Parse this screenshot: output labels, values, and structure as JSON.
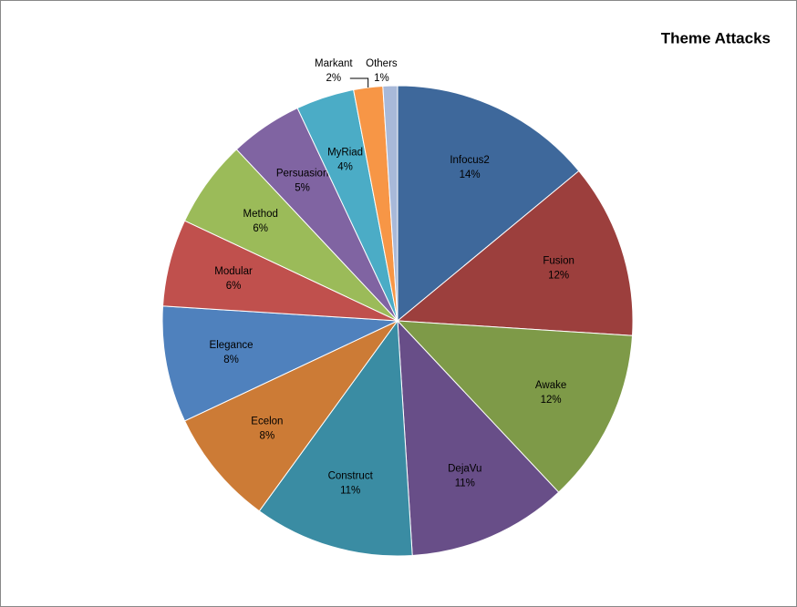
{
  "chart_data": {
    "type": "pie",
    "title": "Theme Attacks",
    "categories": [
      "Infocus2",
      "Fusion",
      "Awake",
      "DejaVu",
      "Construct",
      "Ecelon",
      "Elegance",
      "Modular",
      "Method",
      "Persuasion",
      "MyRiad",
      "Markant",
      "Others"
    ],
    "values": [
      14,
      12,
      12,
      11,
      11,
      8,
      8,
      6,
      6,
      5,
      4,
      2,
      1
    ],
    "value_labels": [
      "14%",
      "12%",
      "12%",
      "11%",
      "11%",
      "8%",
      "8%",
      "6%",
      "6%",
      "5%",
      "4%",
      "2%",
      "1%"
    ],
    "colors": [
      "#3E689B",
      "#9C3F3D",
      "#7E9A48",
      "#684E88",
      "#3A8CA3",
      "#CC7B36",
      "#4F81BD",
      "#C0504D",
      "#9BBB59",
      "#8064A2",
      "#4BACC6",
      "#F79646",
      "#A8B9D9"
    ]
  }
}
